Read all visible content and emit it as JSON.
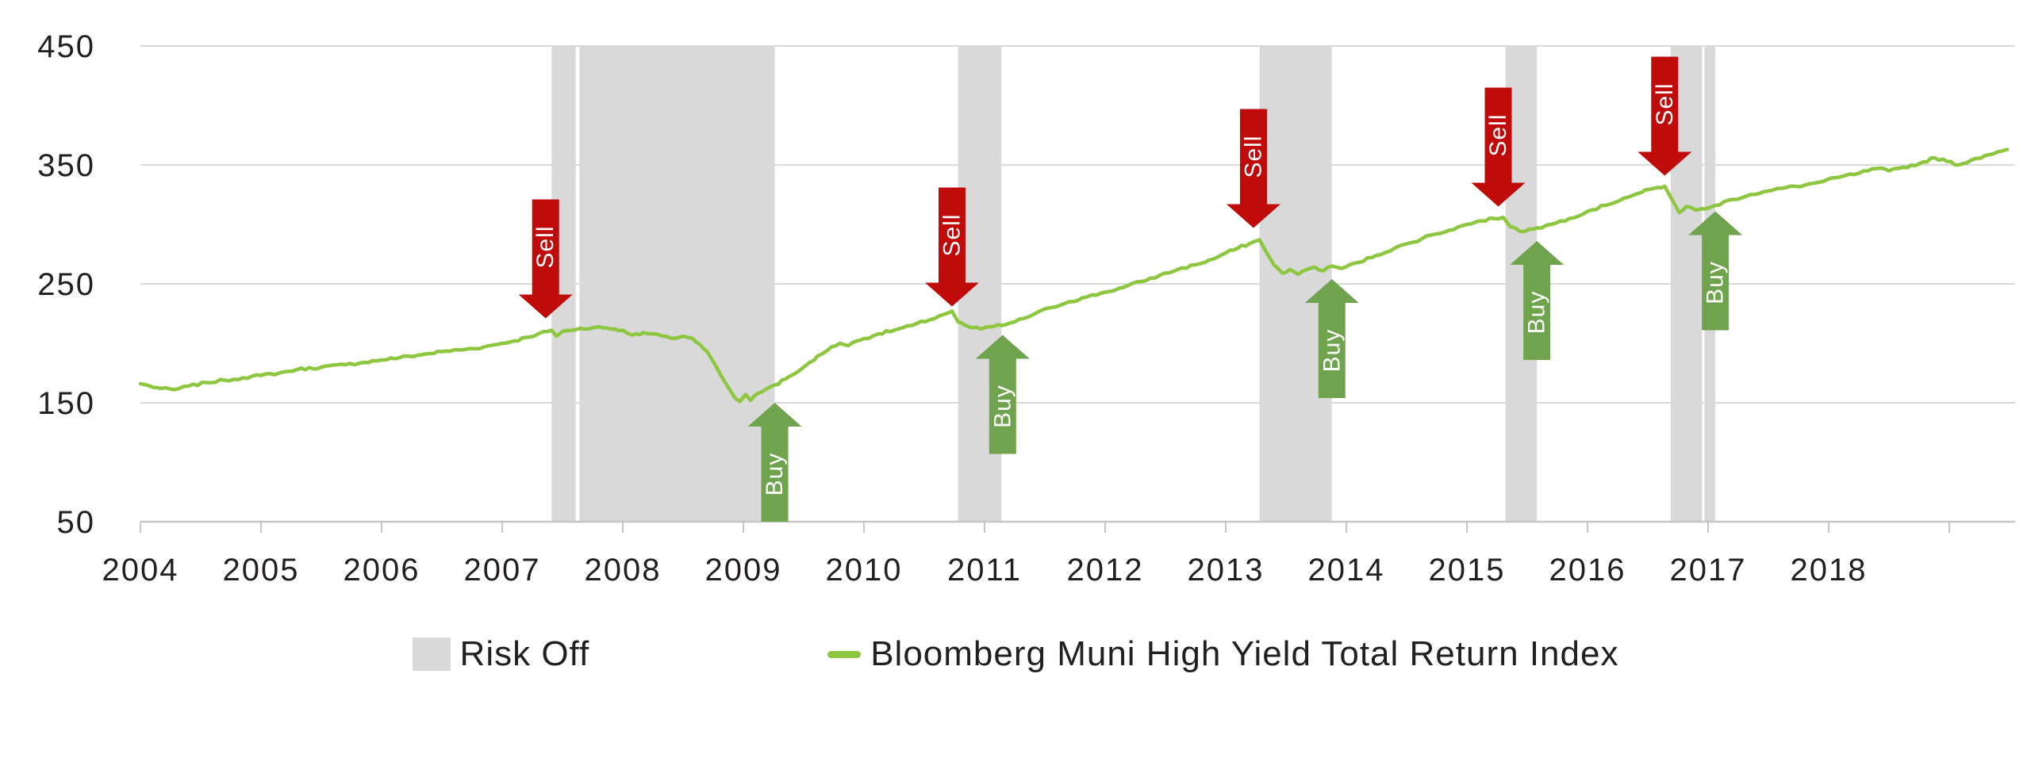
{
  "chart_data": {
    "type": "line",
    "title": "",
    "x_axis": {
      "tick_labels": [
        "2004",
        "2005",
        "2006",
        "2007",
        "2008",
        "2009",
        "2010",
        "2011",
        "2012",
        "2013",
        "2014",
        "2015",
        "2016",
        "2017",
        "2018"
      ],
      "extra_tick_years": [
        2019
      ],
      "range_years": [
        2004,
        2019.5
      ]
    },
    "y_axis": {
      "tick_values": [
        450,
        350,
        250,
        150,
        50
      ],
      "min": 50,
      "max": 450,
      "grid": true
    },
    "series": [
      {
        "name": "Bloomberg Muni High Yield Total Return Index",
        "color": "#8DC63F",
        "points": [
          [
            2004.0,
            166
          ],
          [
            2004.08,
            164
          ],
          [
            2004.17,
            162
          ],
          [
            2004.28,
            161
          ],
          [
            2004.4,
            164
          ],
          [
            2004.55,
            167
          ],
          [
            2004.7,
            169
          ],
          [
            2004.85,
            171
          ],
          [
            2005.0,
            173
          ],
          [
            2005.15,
            175
          ],
          [
            2005.3,
            178
          ],
          [
            2005.5,
            180
          ],
          [
            2005.7,
            182
          ],
          [
            2005.85,
            184
          ],
          [
            2006.0,
            186
          ],
          [
            2006.15,
            188
          ],
          [
            2006.3,
            190
          ],
          [
            2006.5,
            193
          ],
          [
            2006.7,
            195
          ],
          [
            2006.85,
            197
          ],
          [
            2007.0,
            200
          ],
          [
            2007.1,
            202
          ],
          [
            2007.2,
            205
          ],
          [
            2007.3,
            208
          ],
          [
            2007.38,
            210
          ],
          [
            2007.41,
            211
          ],
          [
            2007.45,
            206
          ],
          [
            2007.5,
            210
          ],
          [
            2007.58,
            211
          ],
          [
            2007.68,
            212
          ],
          [
            2007.8,
            214
          ],
          [
            2007.9,
            212
          ],
          [
            2008.0,
            211
          ],
          [
            2008.08,
            207
          ],
          [
            2008.17,
            209
          ],
          [
            2008.25,
            208
          ],
          [
            2008.33,
            206
          ],
          [
            2008.42,
            204
          ],
          [
            2008.5,
            206
          ],
          [
            2008.58,
            204
          ],
          [
            2008.64,
            199
          ],
          [
            2008.7,
            193
          ],
          [
            2008.76,
            183
          ],
          [
            2008.82,
            172
          ],
          [
            2008.88,
            162
          ],
          [
            2008.93,
            154
          ],
          [
            2008.97,
            151
          ],
          [
            2009.02,
            157
          ],
          [
            2009.06,
            152
          ],
          [
            2009.12,
            158
          ],
          [
            2009.18,
            161
          ],
          [
            2009.26,
            165
          ],
          [
            2009.35,
            170
          ],
          [
            2009.45,
            176
          ],
          [
            2009.55,
            184
          ],
          [
            2009.65,
            191
          ],
          [
            2009.73,
            197
          ],
          [
            2009.8,
            200
          ],
          [
            2009.87,
            198
          ],
          [
            2009.94,
            202
          ],
          [
            2010.0,
            204
          ],
          [
            2010.12,
            208
          ],
          [
            2010.25,
            211
          ],
          [
            2010.4,
            215
          ],
          [
            2010.55,
            220
          ],
          [
            2010.65,
            224
          ],
          [
            2010.73,
            227
          ],
          [
            2010.78,
            218
          ],
          [
            2010.84,
            215
          ],
          [
            2010.9,
            213
          ],
          [
            2010.97,
            212
          ],
          [
            2011.05,
            214
          ],
          [
            2011.14,
            215
          ],
          [
            2011.25,
            218
          ],
          [
            2011.4,
            224
          ],
          [
            2011.55,
            230
          ],
          [
            2011.7,
            235
          ],
          [
            2011.85,
            239
          ],
          [
            2012.0,
            243
          ],
          [
            2012.15,
            247
          ],
          [
            2012.3,
            252
          ],
          [
            2012.45,
            257
          ],
          [
            2012.6,
            262
          ],
          [
            2012.75,
            266
          ],
          [
            2012.9,
            271
          ],
          [
            2013.0,
            276
          ],
          [
            2013.1,
            280
          ],
          [
            2013.2,
            284
          ],
          [
            2013.28,
            287
          ],
          [
            2013.34,
            276
          ],
          [
            2013.4,
            266
          ],
          [
            2013.47,
            259
          ],
          [
            2013.53,
            262
          ],
          [
            2013.6,
            258
          ],
          [
            2013.67,
            262
          ],
          [
            2013.74,
            264
          ],
          [
            2013.81,
            261
          ],
          [
            2013.88,
            265
          ],
          [
            2013.96,
            263
          ],
          [
            2014.1,
            268
          ],
          [
            2014.25,
            274
          ],
          [
            2014.4,
            280
          ],
          [
            2014.55,
            285
          ],
          [
            2014.7,
            291
          ],
          [
            2014.85,
            295
          ],
          [
            2015.0,
            300
          ],
          [
            2015.12,
            303
          ],
          [
            2015.22,
            305
          ],
          [
            2015.3,
            306
          ],
          [
            2015.36,
            298
          ],
          [
            2015.44,
            294
          ],
          [
            2015.52,
            296
          ],
          [
            2015.58,
            297
          ],
          [
            2015.7,
            300
          ],
          [
            2015.85,
            305
          ],
          [
            2016.0,
            311
          ],
          [
            2016.15,
            316
          ],
          [
            2016.3,
            322
          ],
          [
            2016.45,
            327
          ],
          [
            2016.58,
            331
          ],
          [
            2016.64,
            332
          ],
          [
            2016.7,
            321
          ],
          [
            2016.76,
            310
          ],
          [
            2016.82,
            315
          ],
          [
            2016.9,
            312
          ],
          [
            2016.98,
            313
          ],
          [
            2017.06,
            316
          ],
          [
            2017.2,
            321
          ],
          [
            2017.35,
            325
          ],
          [
            2017.5,
            328
          ],
          [
            2017.65,
            331
          ],
          [
            2017.8,
            333
          ],
          [
            2017.95,
            336
          ],
          [
            2018.1,
            340
          ],
          [
            2018.25,
            343
          ],
          [
            2018.4,
            347
          ],
          [
            2018.5,
            345
          ],
          [
            2018.62,
            348
          ],
          [
            2018.75,
            351
          ],
          [
            2018.88,
            356
          ],
          [
            2018.98,
            353
          ],
          [
            2019.08,
            350
          ],
          [
            2019.18,
            354
          ],
          [
            2019.3,
            358
          ],
          [
            2019.4,
            361
          ],
          [
            2019.48,
            363
          ]
        ]
      }
    ],
    "risk_off_bands": [
      {
        "start": 2007.41,
        "end": 2007.61
      },
      {
        "start": 2007.64,
        "end": 2009.26
      },
      {
        "start": 2010.78,
        "end": 2011.14
      },
      {
        "start": 2013.28,
        "end": 2013.88
      },
      {
        "start": 2015.32,
        "end": 2015.58
      },
      {
        "start": 2016.69,
        "end": 2016.95
      },
      {
        "start": 2016.97,
        "end": 2017.06
      }
    ],
    "annotations": {
      "sell": {
        "label": "Sell",
        "color": "#C00B0B",
        "events": [
          {
            "year": 2007.36,
            "tip_value": 221
          },
          {
            "year": 2010.73,
            "tip_value": 231
          },
          {
            "year": 2013.23,
            "tip_value": 297
          },
          {
            "year": 2015.26,
            "tip_value": 315
          },
          {
            "year": 2016.64,
            "tip_value": 341
          }
        ]
      },
      "buy": {
        "label": "Buy",
        "color": "#6FA34D",
        "events": [
          {
            "year": 2009.26,
            "tip_value": 150
          },
          {
            "year": 2011.15,
            "tip_value": 207
          },
          {
            "year": 2013.88,
            "tip_value": 254
          },
          {
            "year": 2015.58,
            "tip_value": 286
          },
          {
            "year": 2017.06,
            "tip_value": 311
          }
        ]
      }
    },
    "colors": {
      "band": "#D9D9D9",
      "gridline": "#D9D9D9",
      "axis": "#C6C6C6",
      "text": "#231F20",
      "background": "#FFFFFF"
    },
    "legend_position": "bottom"
  },
  "legend": {
    "items": [
      {
        "label": "Risk Off",
        "swatch": "gray-square"
      },
      {
        "label": "Bloomberg Muni High Yield Total Return Index",
        "swatch": "green-line"
      }
    ]
  }
}
